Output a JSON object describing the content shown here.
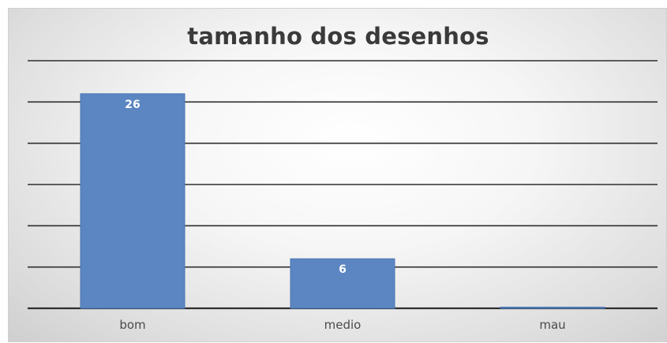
{
  "chart_data": {
    "type": "bar",
    "title": "tamanho dos desenhos",
    "categories": [
      "bom",
      "medio",
      "mau"
    ],
    "values": [
      26,
      6,
      0
    ],
    "data_labels": [
      "26",
      "6",
      ""
    ],
    "ylim": [
      0,
      30
    ],
    "grid": true,
    "y_axis_labels_visible": false,
    "legend": "none",
    "bar_color": "#5b86c2",
    "bar_border_color": "#4a76b4",
    "grid_color": "#2e2e2e"
  }
}
